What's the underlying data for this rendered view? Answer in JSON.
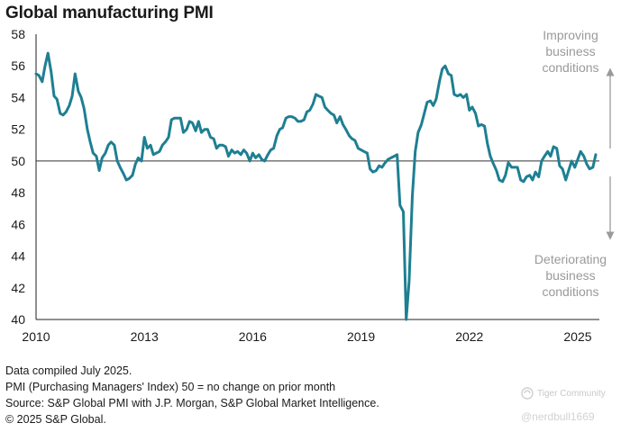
{
  "chart_data": {
    "type": "line",
    "title": "Global manufacturing PMI",
    "xlabel": "",
    "ylabel": "",
    "xlim": [
      2010,
      2025.6
    ],
    "ylim": [
      40,
      58
    ],
    "xticks": [
      2010,
      2013,
      2016,
      2019,
      2022,
      2025
    ],
    "yticks": [
      40,
      42,
      44,
      46,
      48,
      50,
      52,
      54,
      56,
      58
    ],
    "reference_line": 50,
    "grid": false,
    "legend": "none",
    "line_color": "#1e7f92",
    "annotations": {
      "upper": [
        "Improving",
        "business",
        "conditions"
      ],
      "lower": [
        "Deteriorating",
        "business",
        "conditions"
      ]
    },
    "series": [
      {
        "values": [
          [
            2010.0,
            55.5
          ],
          [
            2010.08,
            55.4
          ],
          [
            2010.17,
            55.0
          ],
          [
            2010.25,
            56.0
          ],
          [
            2010.33,
            56.8
          ],
          [
            2010.42,
            55.6
          ],
          [
            2010.5,
            54.1
          ],
          [
            2010.58,
            53.9
          ],
          [
            2010.67,
            53.0
          ],
          [
            2010.75,
            52.9
          ],
          [
            2010.83,
            53.1
          ],
          [
            2010.92,
            53.5
          ],
          [
            2011.0,
            54.1
          ],
          [
            2011.08,
            55.5
          ],
          [
            2011.17,
            54.4
          ],
          [
            2011.25,
            54.0
          ],
          [
            2011.33,
            53.3
          ],
          [
            2011.42,
            52.0
          ],
          [
            2011.5,
            51.2
          ],
          [
            2011.58,
            50.5
          ],
          [
            2011.67,
            50.3
          ],
          [
            2011.75,
            49.4
          ],
          [
            2011.83,
            50.2
          ],
          [
            2011.92,
            50.5
          ],
          [
            2012.0,
            51.0
          ],
          [
            2012.08,
            51.2
          ],
          [
            2012.17,
            51.0
          ],
          [
            2012.25,
            50.0
          ],
          [
            2012.33,
            49.6
          ],
          [
            2012.42,
            49.2
          ],
          [
            2012.5,
            48.8
          ],
          [
            2012.58,
            48.9
          ],
          [
            2012.67,
            49.1
          ],
          [
            2012.75,
            49.8
          ],
          [
            2012.83,
            50.2
          ],
          [
            2012.92,
            50.0
          ],
          [
            2013.0,
            51.5
          ],
          [
            2013.08,
            50.8
          ],
          [
            2013.17,
            51.0
          ],
          [
            2013.25,
            50.4
          ],
          [
            2013.33,
            50.5
          ],
          [
            2013.42,
            50.6
          ],
          [
            2013.5,
            51.0
          ],
          [
            2013.58,
            51.2
          ],
          [
            2013.67,
            51.5
          ],
          [
            2013.75,
            52.6
          ],
          [
            2013.83,
            52.7
          ],
          [
            2013.92,
            52.7
          ],
          [
            2014.0,
            52.7
          ],
          [
            2014.08,
            51.8
          ],
          [
            2014.17,
            52.0
          ],
          [
            2014.25,
            52.5
          ],
          [
            2014.33,
            52.4
          ],
          [
            2014.42,
            51.9
          ],
          [
            2014.5,
            52.5
          ],
          [
            2014.58,
            51.8
          ],
          [
            2014.67,
            52.0
          ],
          [
            2014.75,
            52.0
          ],
          [
            2014.83,
            51.5
          ],
          [
            2014.92,
            51.4
          ],
          [
            2015.0,
            50.8
          ],
          [
            2015.08,
            51.0
          ],
          [
            2015.17,
            51.0
          ],
          [
            2015.25,
            50.9
          ],
          [
            2015.33,
            50.3
          ],
          [
            2015.42,
            50.7
          ],
          [
            2015.5,
            50.5
          ],
          [
            2015.58,
            50.6
          ],
          [
            2015.67,
            50.4
          ],
          [
            2015.75,
            50.7
          ],
          [
            2015.83,
            50.5
          ],
          [
            2015.92,
            50.0
          ],
          [
            2016.0,
            50.5
          ],
          [
            2016.08,
            50.2
          ],
          [
            2016.17,
            50.4
          ],
          [
            2016.25,
            50.1
          ],
          [
            2016.33,
            50.0
          ],
          [
            2016.42,
            50.4
          ],
          [
            2016.5,
            50.7
          ],
          [
            2016.58,
            50.8
          ],
          [
            2016.67,
            51.6
          ],
          [
            2016.75,
            52.0
          ],
          [
            2016.83,
            52.1
          ],
          [
            2016.92,
            52.7
          ],
          [
            2017.0,
            52.8
          ],
          [
            2017.08,
            52.8
          ],
          [
            2017.17,
            52.7
          ],
          [
            2017.25,
            52.5
          ],
          [
            2017.33,
            52.5
          ],
          [
            2017.42,
            52.6
          ],
          [
            2017.5,
            53.1
          ],
          [
            2017.58,
            53.2
          ],
          [
            2017.67,
            53.6
          ],
          [
            2017.75,
            54.2
          ],
          [
            2017.83,
            54.1
          ],
          [
            2017.92,
            54.0
          ],
          [
            2018.0,
            53.4
          ],
          [
            2018.08,
            53.2
          ],
          [
            2018.17,
            53.0
          ],
          [
            2018.25,
            52.9
          ],
          [
            2018.33,
            52.4
          ],
          [
            2018.42,
            52.8
          ],
          [
            2018.5,
            52.3
          ],
          [
            2018.58,
            52.0
          ],
          [
            2018.67,
            51.6
          ],
          [
            2018.75,
            51.4
          ],
          [
            2018.83,
            51.3
          ],
          [
            2018.92,
            50.8
          ],
          [
            2019.0,
            50.7
          ],
          [
            2019.08,
            50.6
          ],
          [
            2019.17,
            50.5
          ],
          [
            2019.25,
            49.5
          ],
          [
            2019.33,
            49.3
          ],
          [
            2019.42,
            49.4
          ],
          [
            2019.5,
            49.7
          ],
          [
            2019.58,
            49.6
          ],
          [
            2019.67,
            49.9
          ],
          [
            2019.75,
            50.1
          ],
          [
            2019.83,
            50.2
          ],
          [
            2019.92,
            50.3
          ],
          [
            2020.0,
            50.4
          ],
          [
            2020.08,
            47.2
          ],
          [
            2020.17,
            46.8
          ],
          [
            2020.25,
            40.0
          ],
          [
            2020.33,
            42.4
          ],
          [
            2020.42,
            47.8
          ],
          [
            2020.5,
            50.6
          ],
          [
            2020.58,
            51.8
          ],
          [
            2020.67,
            52.3
          ],
          [
            2020.75,
            53.0
          ],
          [
            2020.83,
            53.7
          ],
          [
            2020.92,
            53.8
          ],
          [
            2021.0,
            53.5
          ],
          [
            2021.08,
            53.9
          ],
          [
            2021.17,
            55.0
          ],
          [
            2021.25,
            55.8
          ],
          [
            2021.33,
            56.0
          ],
          [
            2021.42,
            55.5
          ],
          [
            2021.5,
            55.4
          ],
          [
            2021.58,
            54.2
          ],
          [
            2021.67,
            54.1
          ],
          [
            2021.75,
            54.2
          ],
          [
            2021.83,
            54.0
          ],
          [
            2021.92,
            54.2
          ],
          [
            2022.0,
            53.2
          ],
          [
            2022.08,
            53.4
          ],
          [
            2022.17,
            53.0
          ],
          [
            2022.25,
            52.2
          ],
          [
            2022.33,
            52.3
          ],
          [
            2022.42,
            52.2
          ],
          [
            2022.5,
            51.1
          ],
          [
            2022.58,
            50.3
          ],
          [
            2022.67,
            49.8
          ],
          [
            2022.75,
            49.4
          ],
          [
            2022.83,
            48.8
          ],
          [
            2022.92,
            48.7
          ],
          [
            2023.0,
            49.1
          ],
          [
            2023.08,
            49.9
          ],
          [
            2023.17,
            49.6
          ],
          [
            2023.25,
            49.6
          ],
          [
            2023.33,
            49.6
          ],
          [
            2023.42,
            48.8
          ],
          [
            2023.5,
            48.7
          ],
          [
            2023.58,
            49.0
          ],
          [
            2023.67,
            49.1
          ],
          [
            2023.75,
            48.8
          ],
          [
            2023.83,
            49.3
          ],
          [
            2023.92,
            49.0
          ],
          [
            2024.0,
            50.0
          ],
          [
            2024.08,
            50.3
          ],
          [
            2024.17,
            50.6
          ],
          [
            2024.25,
            50.3
          ],
          [
            2024.33,
            50.9
          ],
          [
            2024.42,
            50.8
          ],
          [
            2024.5,
            49.7
          ],
          [
            2024.58,
            49.5
          ],
          [
            2024.67,
            48.8
          ],
          [
            2024.75,
            49.4
          ],
          [
            2024.83,
            50.0
          ],
          [
            2024.92,
            49.6
          ],
          [
            2025.0,
            50.1
          ],
          [
            2025.08,
            50.6
          ],
          [
            2025.17,
            50.3
          ],
          [
            2025.25,
            49.8
          ],
          [
            2025.33,
            49.5
          ],
          [
            2025.42,
            49.6
          ],
          [
            2025.5,
            50.4
          ]
        ]
      }
    ]
  },
  "notes": [
    "Data compiled July 2025.",
    "PMI (Purchasing Managers' Index) 50 = no change on prior month",
    "Source: S&P Global  PMI with J.P. Morgan, S&P Global Market Intelligence.",
    "© 2025 S&P Global."
  ],
  "watermark": {
    "brand": "Tiger Community",
    "handle": "@nerdbull1669"
  }
}
